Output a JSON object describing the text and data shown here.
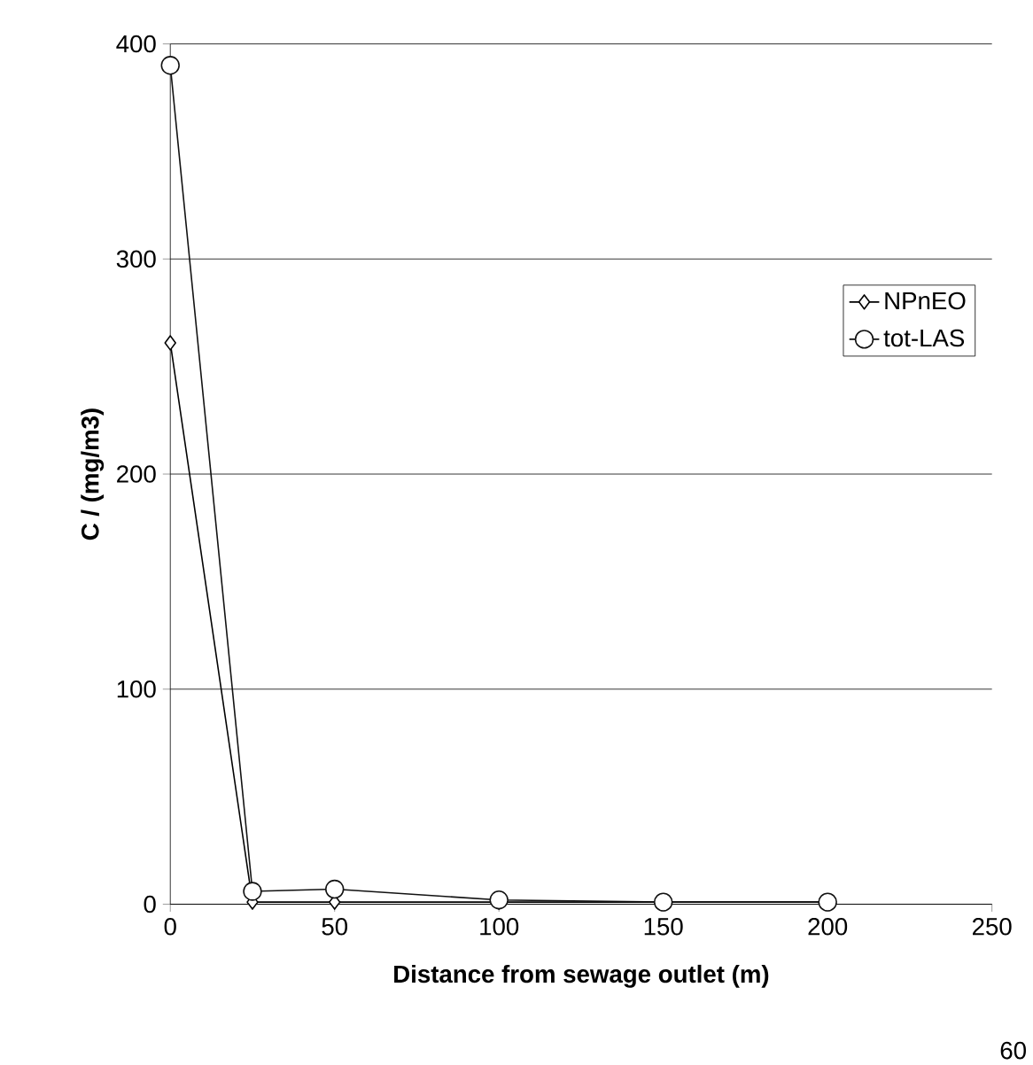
{
  "chart_data": {
    "type": "line",
    "xlabel": "Distance from sewage outlet (m)",
    "ylabel": "C / (mg/m3)",
    "x": [
      0,
      25,
      50,
      100,
      150,
      200
    ],
    "series": [
      {
        "name": "NPnEO",
        "color": "#000000",
        "marker": "diamond",
        "values": [
          261,
          1,
          1,
          1,
          1,
          1
        ]
      },
      {
        "name": "tot-LAS",
        "color": "#111111",
        "marker": "circle",
        "values": [
          390,
          6,
          7,
          2,
          1,
          1
        ]
      }
    ],
    "xlim": [
      0,
      250
    ],
    "xticks": [
      0,
      50,
      100,
      150,
      200,
      250
    ],
    "ylim": [
      0,
      400
    ],
    "yticks": [
      0,
      100,
      200,
      300,
      400
    ],
    "grid": "y",
    "legend": "right",
    "line_style": "solid",
    "annotations": [
      "60"
    ]
  }
}
